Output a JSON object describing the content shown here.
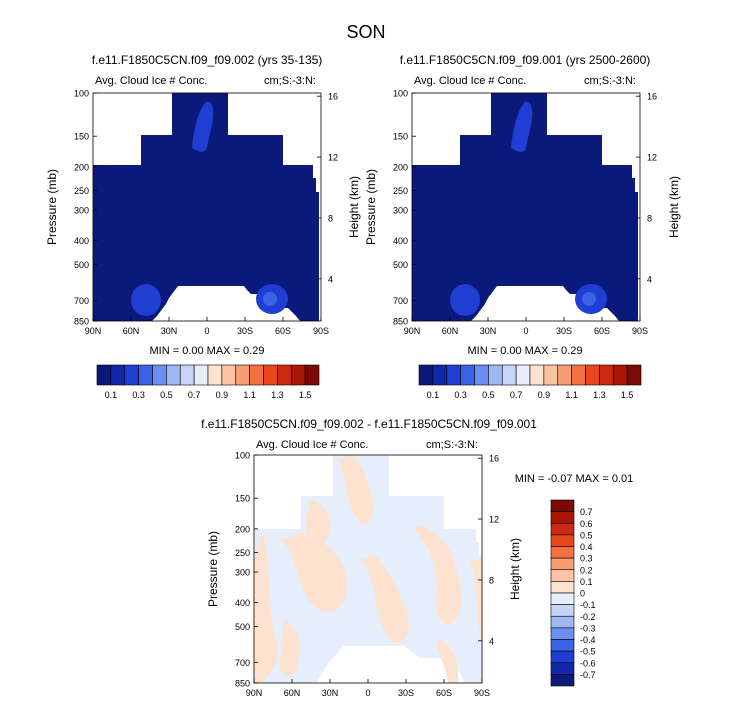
{
  "figure_title": "SON",
  "panels": [
    {
      "title": "f.e11.F1850C5CN.f09_f09.002 (yrs 35-135)",
      "variable": "Avg. Cloud Ice # Conc.",
      "units": "cm;S:-3:N:",
      "min_max": "MIN =  0.00  MAX =   0.29",
      "ylabel": "Pressure (mb)",
      "ylabel_right": "Height (km)",
      "pressure_ticks": [
        "100",
        "150",
        "200",
        "250",
        "300",
        "400",
        "500",
        "700",
        "850"
      ],
      "height_ticks": [
        "16",
        "12",
        "8",
        "4"
      ],
      "lat_ticks": [
        "90N",
        "60N",
        "30N",
        "0",
        "30S",
        "60S",
        "90S"
      ]
    },
    {
      "title": "f.e11.F1850C5CN.f09_f09.001 (yrs 2500-2600)",
      "variable": "Avg. Cloud Ice # Conc.",
      "units": "cm;S:-3:N:",
      "min_max": "MIN =  0.00  MAX =   0.29",
      "ylabel": "Pressure (mb)",
      "ylabel_right": "Height (km)",
      "pressure_ticks": [
        "100",
        "150",
        "200",
        "250",
        "300",
        "400",
        "500",
        "700",
        "850"
      ],
      "height_ticks": [
        "16",
        "12",
        "8",
        "4"
      ],
      "lat_ticks": [
        "90N",
        "60N",
        "30N",
        "0",
        "30S",
        "60S",
        "90S"
      ]
    },
    {
      "title": "f.e11.F1850C5CN.f09_f09.002 - f.e11.F1850C5CN.f09_f09.001",
      "variable": "Avg. Cloud Ice # Conc.",
      "units": "cm;S:-3:N:",
      "min_max": "MIN =  -0.07  MAX =   0.01",
      "ylabel": "Pressure (mb)",
      "ylabel_right": "Height (km)",
      "pressure_ticks": [
        "100",
        "150",
        "200",
        "250",
        "300",
        "400",
        "500",
        "700",
        "850"
      ],
      "height_ticks": [
        "16",
        "12",
        "8",
        "4"
      ],
      "lat_ticks": [
        "90N",
        "60N",
        "30N",
        "0",
        "30S",
        "60S",
        "90S"
      ]
    }
  ],
  "colorbar_top": {
    "labels": [
      "0.1",
      "0.3",
      "0.5",
      "0.7",
      "0.9",
      "1.1",
      "1.3",
      "1.5"
    ],
    "colors": [
      "#0b1a7a",
      "#1027a8",
      "#1e3fd2",
      "#3a63e6",
      "#6b8ef0",
      "#9fb6f5",
      "#c6d4f8",
      "#e6eefc",
      "#fde2cf",
      "#fbc3a3",
      "#f79d74",
      "#f2713f",
      "#e8471c",
      "#cc2a10",
      "#a81608",
      "#7a0a04"
    ]
  },
  "colorbar_diff": {
    "labels": [
      "0.7",
      "0.6",
      "0.5",
      "0.4",
      "0.3",
      "0.2",
      "0.1",
      "0",
      "-0.1",
      "-0.2",
      "-0.3",
      "-0.4",
      "-0.5",
      "-0.6",
      "-0.7"
    ],
    "colors": [
      "#7a0a04",
      "#a81608",
      "#cc2a10",
      "#e8471c",
      "#f2713f",
      "#f79d74",
      "#fbc3a3",
      "#fde2cf",
      "#e6eefc",
      "#c6d4f8",
      "#9fb6f5",
      "#6b8ef0",
      "#3a63e6",
      "#1e3fd2",
      "#1027a8",
      "#0b1a7a"
    ]
  },
  "chart_data": [
    {
      "type": "heatmap",
      "title": "f.e11.F1850C5CN.f09_f09.002 (yrs 35-135)",
      "subtitle": "Avg. Cloud Ice # Conc.",
      "xlabel": "",
      "ylabel": "Pressure (mb)",
      "x_range": [
        "90N",
        "90S"
      ],
      "y_range_mb": [
        100,
        850
      ],
      "y_log_scale": true,
      "values_summary": {
        "min": 0.0,
        "max": 0.29
      },
      "features": [
        {
          "lat": 50,
          "pressure_mb": 690,
          "value": 0.2
        },
        {
          "lat": -48,
          "pressure_mb": 690,
          "value": 0.25
        },
        {
          "lat": -5,
          "pressure_mb": 120,
          "value": 0.15
        }
      ]
    },
    {
      "type": "heatmap",
      "title": "f.e11.F1850C5CN.f09_f09.001 (yrs 2500-2600)",
      "subtitle": "Avg. Cloud Ice # Conc.",
      "xlabel": "",
      "ylabel": "Pressure (mb)",
      "x_range": [
        "90N",
        "90S"
      ],
      "y_range_mb": [
        100,
        850
      ],
      "y_log_scale": true,
      "values_summary": {
        "min": 0.0,
        "max": 0.29
      },
      "features": [
        {
          "lat": 50,
          "pressure_mb": 690,
          "value": 0.2
        },
        {
          "lat": -48,
          "pressure_mb": 690,
          "value": 0.25
        },
        {
          "lat": -5,
          "pressure_mb": 120,
          "value": 0.15
        }
      ]
    },
    {
      "type": "heatmap",
      "title": "f.e11.F1850C5CN.f09_f09.002 - f.e11.F1850C5CN.f09_f09.001",
      "subtitle": "Avg. Cloud Ice # Conc.",
      "xlabel": "",
      "ylabel": "Pressure (mb)",
      "x_range": [
        "90N",
        "90S"
      ],
      "y_range_mb": [
        100,
        850
      ],
      "y_log_scale": true,
      "values_summary": {
        "min": -0.07,
        "max": 0.01
      }
    }
  ]
}
